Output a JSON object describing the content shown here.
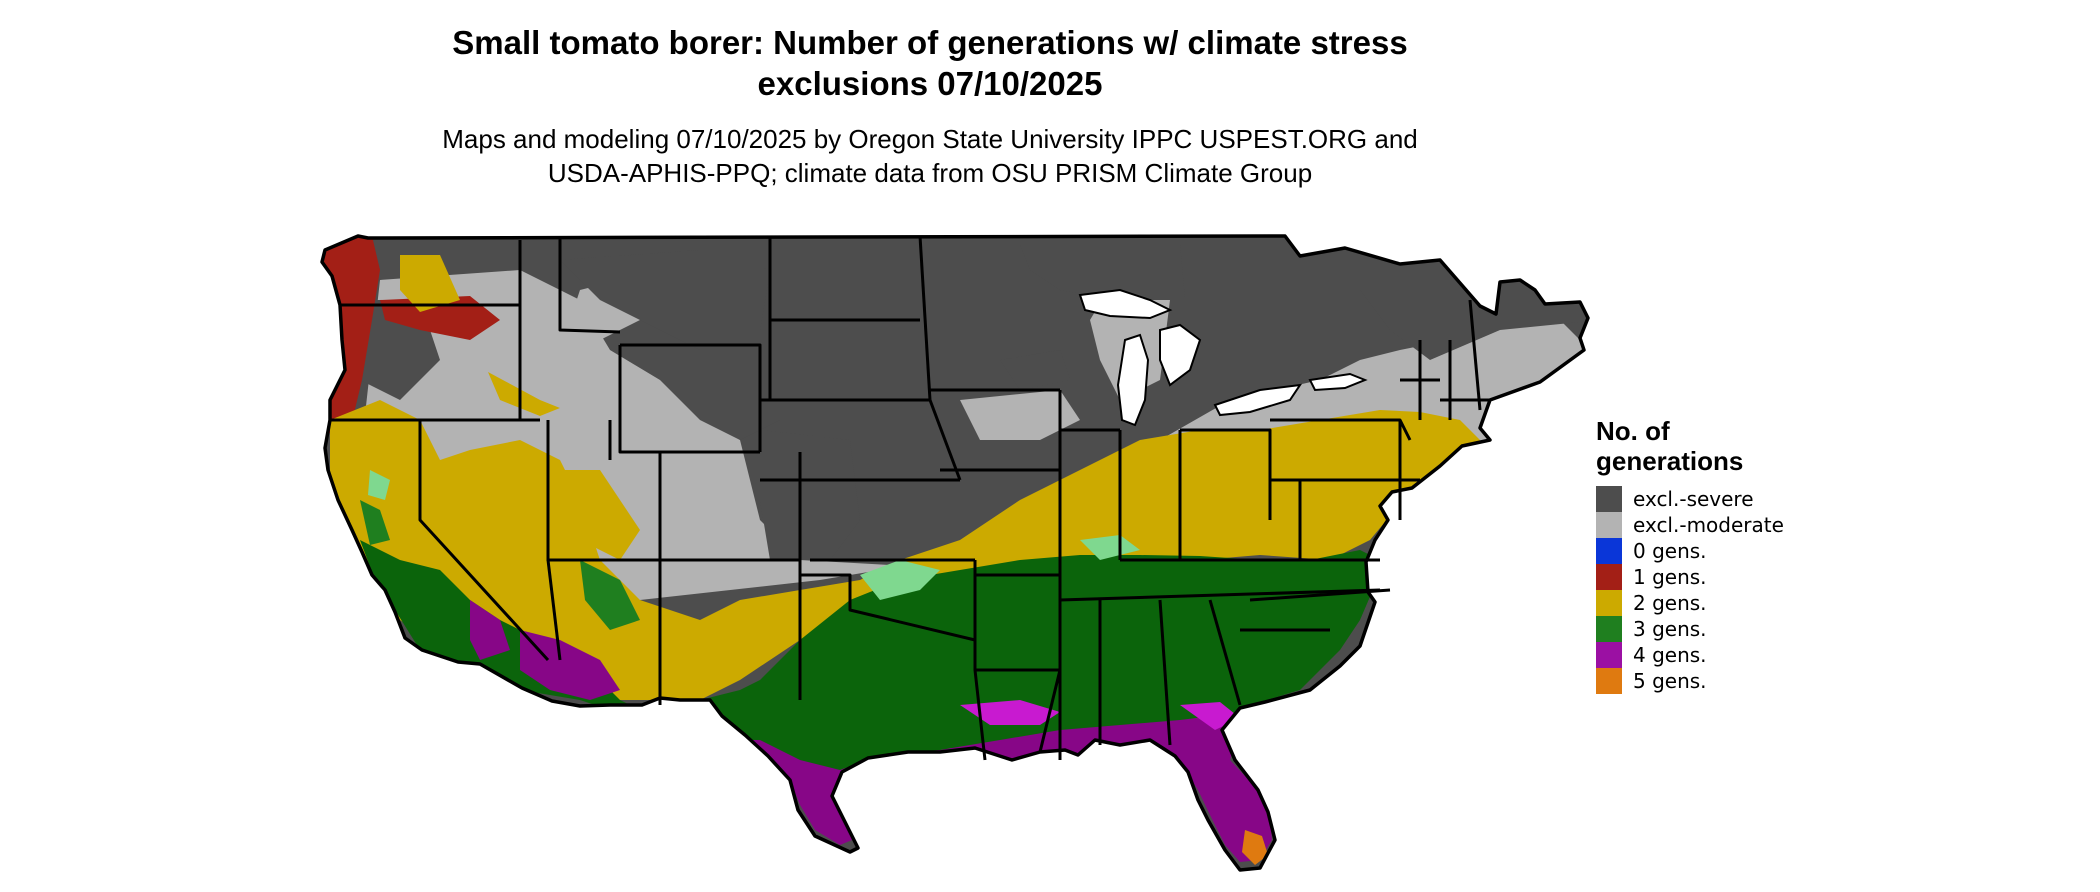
{
  "title": {
    "line1": "Small tomato borer: Number of generations w/ climate stress",
    "line2": "exclusions 07/10/2025"
  },
  "subtitle": {
    "line1": "Maps and modeling 07/10/2025 by Oregon State University IPPC USPEST.ORG and",
    "line2": "USDA-APHIS-PPQ; climate data from OSU PRISM Climate Group"
  },
  "legend": {
    "title_line1": "No. of",
    "title_line2": "generations",
    "items": [
      {
        "label": "excl.-severe",
        "color": "#4d4d4d"
      },
      {
        "label": "excl.-moderate",
        "color": "#b3b3b3"
      },
      {
        "label": "0 gens.",
        "color": "#0a36d8"
      },
      {
        "label": "1 gens.",
        "color": "#a31f16"
      },
      {
        "label": "2 gens.",
        "color": "#ccaa00"
      },
      {
        "label": "3 gens.",
        "color": "#1f7f1f"
      },
      {
        "label": "4 gens.",
        "color": "#9b10a3"
      },
      {
        "label": "5 gens.",
        "color": "#df7a10"
      }
    ]
  },
  "map": {
    "region": "Contiguous United States",
    "colors": {
      "excl_severe": "#4d4d4d",
      "excl_moderate": "#b3b3b3",
      "gens_1": "#a31f16",
      "gens_2": "#ccaa00",
      "gens_3": "#0b640b",
      "gens_3_light": "#1f7f1f",
      "gens_3_fringe": "#7fd88f",
      "gens_4": "#870687",
      "gens_4_bright": "#c81ad0",
      "gens_5": "#df7a10",
      "state_border": "#000000",
      "lakes": "#ffffff"
    }
  }
}
